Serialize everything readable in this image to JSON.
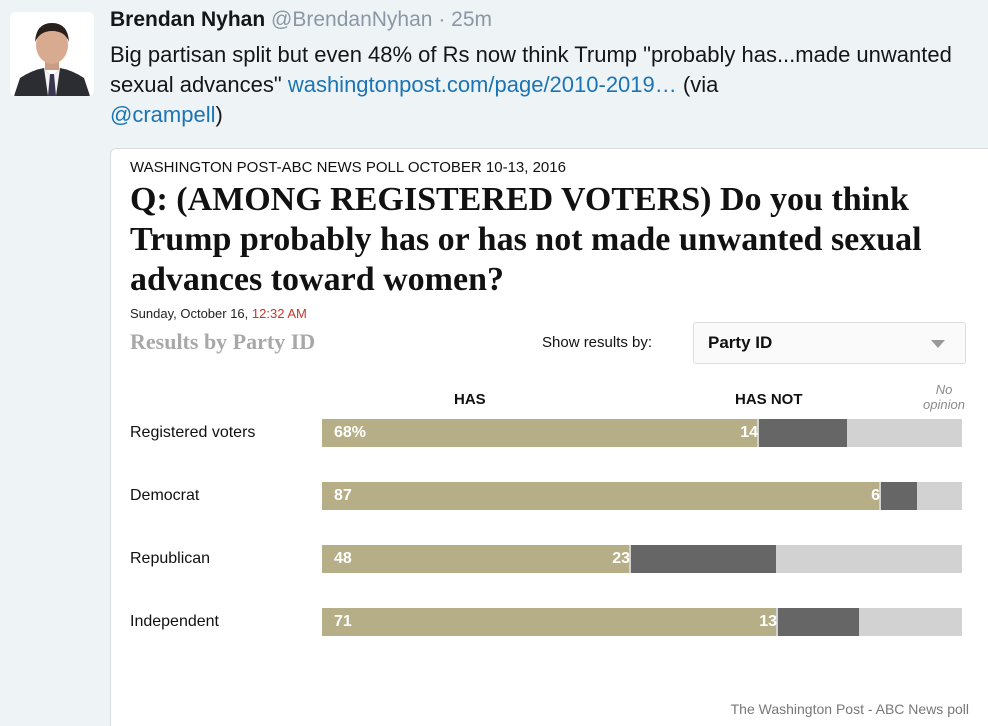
{
  "tweet": {
    "author_name": "Brendan Nyhan",
    "author_handle": "@BrendanNyhan",
    "separator": "·",
    "time": "25m",
    "text_main": "Big partisan split but even 48% of Rs now think Trump \"probably has...made unwanted sexual advances\"",
    "link_text": "washingtonpost.com/page/2010-2019…",
    "via_text": "(via",
    "mention": "@crampell",
    "close_paren": ")"
  },
  "poll": {
    "source": "WASHINGTON POST-ABC NEWS POLL OCTOBER 10-13, 2016",
    "question": "Q: (AMONG REGISTERED VOTERS) Do you think Trump probably has or has not made unwanted sexual advances toward women?",
    "date": "Sunday, October 16,",
    "time": "12:32 AM",
    "results_heading": "Results by Party ID",
    "show_label": "Show results by:",
    "select_value": "Party ID",
    "footer": "The Washington Post - ABC News poll"
  },
  "chart_data": {
    "type": "bar",
    "stacked": true,
    "orientation": "horizontal",
    "columns": [
      "HAS",
      "HAS NOT",
      "No opinion"
    ],
    "categories": [
      "Registered voters",
      "Democrat",
      "Republican",
      "Independent"
    ],
    "series": [
      {
        "name": "HAS",
        "values": [
          68,
          87,
          48,
          71
        ],
        "labels": [
          "68%",
          "87",
          "48",
          "71"
        ],
        "color": "#b6ae86"
      },
      {
        "name": "HAS NOT",
        "values": [
          14,
          6,
          23,
          13
        ],
        "labels": [
          "14",
          "6",
          "23",
          "13"
        ],
        "color": "#666666"
      },
      {
        "name": "No opinion",
        "values": [
          18,
          7,
          29,
          16
        ],
        "color": "#d2d2d2"
      }
    ]
  },
  "colors": {
    "link": "#1b74b3",
    "has": "#b6ae86",
    "has_not": "#666666",
    "no_opinion": "#d2d2d2",
    "timestamp_red": "#c0392b"
  }
}
